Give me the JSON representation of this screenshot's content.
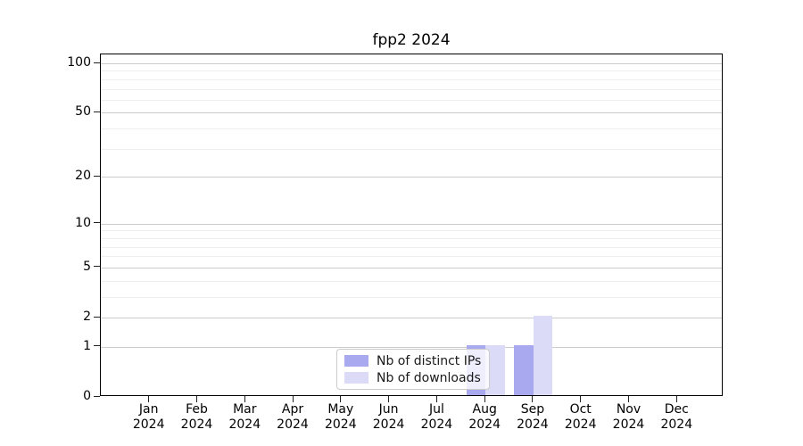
{
  "chart_data": {
    "type": "bar",
    "title": "fpp2 2024",
    "categories": [
      "Jan",
      "Feb",
      "Mar",
      "Apr",
      "May",
      "Jun",
      "Jul",
      "Aug",
      "Sep",
      "Oct",
      "Nov",
      "Dec"
    ],
    "year_label": "2024",
    "series": [
      {
        "name": "Nb of distinct IPs",
        "color": "#a9a9f0",
        "values": [
          0,
          0,
          0,
          0,
          0,
          0,
          0,
          1,
          1,
          0,
          0,
          0
        ]
      },
      {
        "name": "Nb of downloads",
        "color": "#dbdbf7",
        "values": [
          0,
          0,
          0,
          0,
          0,
          0,
          0,
          1,
          2,
          0,
          0,
          0
        ]
      }
    ],
    "yscale": "log1p",
    "yticks": [
      0,
      1,
      2,
      5,
      10,
      20,
      50,
      100
    ],
    "minor_gridlines": [
      3,
      4,
      6,
      7,
      8,
      9,
      30,
      40,
      60,
      70,
      80,
      90
    ],
    "ylim": [
      0,
      113
    ],
    "xlabel": "",
    "ylabel": "",
    "grid": "both",
    "legend_position": "lower center",
    "colors": {
      "major_grid": "#cccccc",
      "minor_grid": "#eeeeee",
      "spine": "#000000",
      "text": "#000000"
    }
  }
}
